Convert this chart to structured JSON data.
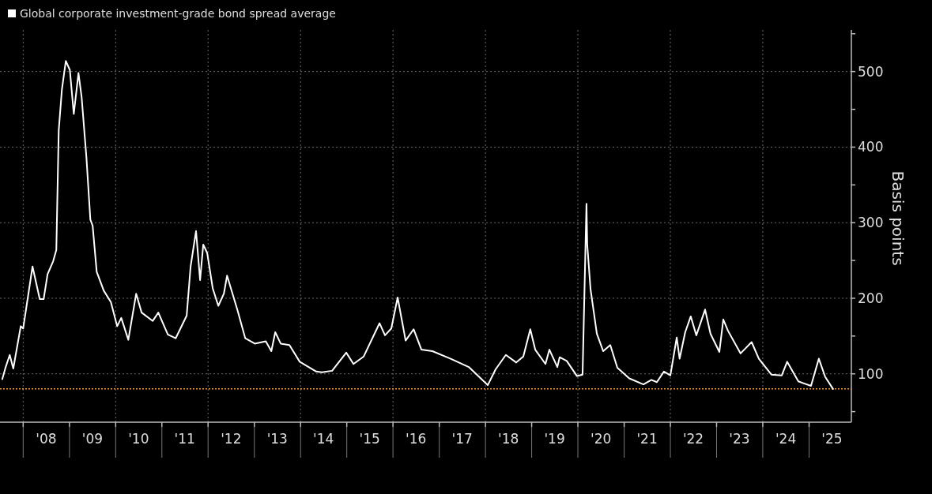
{
  "chart_data": {
    "type": "line",
    "ylabel": "Basis points",
    "legend": "top left",
    "grid": true,
    "line_style": "solid",
    "marker": "none",
    "xlim": [
      "2007-07-02",
      "2025-12-01"
    ],
    "xticks": [
      {
        "value": "2008",
        "label": null
      },
      {
        "value": "2009",
        "label": null
      },
      {
        "value": "2010",
        "label": null
      },
      {
        "value": "2011",
        "label": null
      },
      {
        "value": "2012",
        "label": null
      },
      {
        "value": "2013",
        "label": null
      },
      {
        "value": "2014",
        "label": null
      },
      {
        "value": "2015",
        "label": null
      },
      {
        "value": "2016",
        "label": null
      },
      {
        "value": "2017",
        "label": null
      },
      {
        "value": "2018",
        "label": null
      },
      {
        "value": "2019",
        "label": null
      },
      {
        "value": "2020",
        "label": null
      },
      {
        "value": "2021",
        "label": null
      },
      {
        "value": "2022",
        "label": null
      },
      {
        "value": "2023",
        "label": null
      },
      {
        "value": "2024",
        "label": null
      },
      {
        "value": "2025",
        "label": null
      },
      {
        "value": "2008-07-01",
        "label": "'08"
      },
      {
        "value": "2009-07-01",
        "label": "'09"
      },
      {
        "value": "2010-07-01",
        "label": "'10"
      },
      {
        "value": "2011-07-01",
        "label": "'11"
      },
      {
        "value": "2012-07-01",
        "label": "'12"
      },
      {
        "value": "2013-07-01",
        "label": "'13"
      },
      {
        "value": "2014-07-01",
        "label": "'14"
      },
      {
        "value": "2015-07-01",
        "label": "'15"
      },
      {
        "value": "2016-07-01",
        "label": "'16"
      },
      {
        "value": "2017-07-01",
        "label": "'17"
      },
      {
        "value": "2018-07-01",
        "label": "'18"
      },
      {
        "value": "2019-07-01",
        "label": "'19"
      },
      {
        "value": "2020-07-01",
        "label": "'20"
      },
      {
        "value": "2021-07-01",
        "label": "'21"
      },
      {
        "value": "2022-07-01",
        "label": "'22"
      },
      {
        "value": "2023-07-01",
        "label": "'23"
      },
      {
        "value": "2024-07-01",
        "label": "'24"
      },
      {
        "value": "2025-07-01",
        "label": "'25"
      }
    ],
    "ylim": [
      36,
      555
    ],
    "yticks": [
      {
        "value": 50,
        "label": null
      },
      100,
      {
        "value": 150,
        "label": null
      },
      200,
      {
        "value": 250,
        "label": null
      },
      300,
      {
        "value": 350,
        "label": null
      },
      400,
      {
        "value": 450,
        "label": null
      },
      500,
      {
        "value": 550,
        "label": null
      }
    ],
    "ref_lines": [
      {
        "axis": "y",
        "value": 80,
        "color": "#f0a030",
        "line_style": "dotted"
      }
    ],
    "x": [
      "2007-07-20",
      "2007-08-16",
      "2007-09-17",
      "2007-10-15",
      "2007-12-13",
      "2008-01-01",
      "2008-03-15",
      "2008-05-11",
      "2008-06-11",
      "2008-07-12",
      "2008-08-25",
      "2008-09-19",
      "2008-10-08",
      "2008-11-02",
      "2008-12-03",
      "2009-01-04",
      "2009-02-04",
      "2009-03-13",
      "2009-04-07",
      "2009-05-15",
      "2009-06-15",
      "2009-07-03",
      "2009-08-04",
      "2009-09-29",
      "2009-11-24",
      "2010-01-13",
      "2010-02-14",
      "2010-04-11",
      "2010-06-12",
      "2010-07-25",
      "2010-10-21",
      "2010-12-04",
      "2011-02-17",
      "2011-04-20",
      "2011-07-16",
      "2011-08-16",
      "2011-09-28",
      "2011-10-30",
      "2011-11-24",
      "2011-12-25",
      "2012-02-07",
      "2012-03-22",
      "2012-05-05",
      "2012-05-30",
      "2012-08-19",
      "2012-10-21",
      "2013-01-04",
      "2013-04-01",
      "2013-05-15",
      "2013-06-15",
      "2013-07-28",
      "2013-10-05",
      "2013-12-25",
      "2014-05-05",
      "2014-06-18",
      "2014-09-07",
      "2014-12-28",
      "2015-02-23",
      "2015-05-15",
      "2015-09-17",
      "2015-10-30",
      "2015-12-19",
      "2016-02-07",
      "2016-04-10",
      "2016-06-12",
      "2016-08-13",
      "2016-11-08",
      "2017-04-01",
      "2017-08-22",
      "2018-01-19",
      "2018-03-22",
      "2018-06-11",
      "2018-09-01",
      "2018-10-27",
      "2018-12-21",
      "2019-01-29",
      "2019-04-20",
      "2019-05-21",
      "2019-07-23",
      "2019-08-10",
      "2019-10-05",
      "2019-12-25",
      "2020-02-07",
      "2020-03-09",
      "2020-03-15",
      "2020-04-10",
      "2020-05-30",
      "2020-07-19",
      "2020-09-13",
      "2020-11-08",
      "2021-02-10",
      "2021-06-02",
      "2021-08-04",
      "2021-09-16",
      "2021-11-11",
      "2022-01-01",
      "2022-02-20",
      "2022-03-15",
      "2022-04-28",
      "2022-06-11",
      "2022-07-25",
      "2022-10-02",
      "2022-11-14",
      "2023-01-23",
      "2023-02-23",
      "2023-04-01",
      "2023-07-09",
      "2023-10-05",
      "2023-12-01",
      "2024-03-09",
      "2024-05-30",
      "2024-07-12",
      "2024-10-08",
      "2025-01-16",
      "2025-03-19",
      "2025-05-08",
      "2025-07-09"
    ],
    "series": [
      {
        "name": "Global corporate investment-grade bond spread average",
        "color": "#ffffff",
        "values": [
          93,
          109,
          125,
          107,
          163,
          160,
          242,
          199,
          199,
          232,
          249,
          264,
          422,
          476,
          514,
          502,
          444,
          498,
          466,
          386,
          304,
          296,
          235,
          210,
          195,
          163,
          174,
          145,
          206,
          181,
          170,
          181,
          152,
          147,
          177,
          242,
          289,
          224,
          271,
          260,
          213,
          190,
          206,
          230,
          185,
          147,
          140,
          143,
          130,
          155,
          140,
          138,
          116,
          103,
          102,
          104,
          128,
          113,
          123,
          167,
          151,
          160,
          201,
          144,
          159,
          132,
          130,
          120,
          109,
          85,
          106,
          125,
          115,
          123,
          159,
          132,
          113,
          132,
          109,
          122,
          117,
          97,
          99,
          325,
          271,
          212,
          153,
          130,
          138,
          108,
          94,
          86,
          92,
          89,
          103,
          98,
          148,
          120,
          155,
          176,
          151,
          185,
          153,
          129,
          172,
          157,
          127,
          142,
          120,
          99,
          98,
          116,
          90,
          84,
          120,
          96,
          80
        ]
      }
    ]
  }
}
